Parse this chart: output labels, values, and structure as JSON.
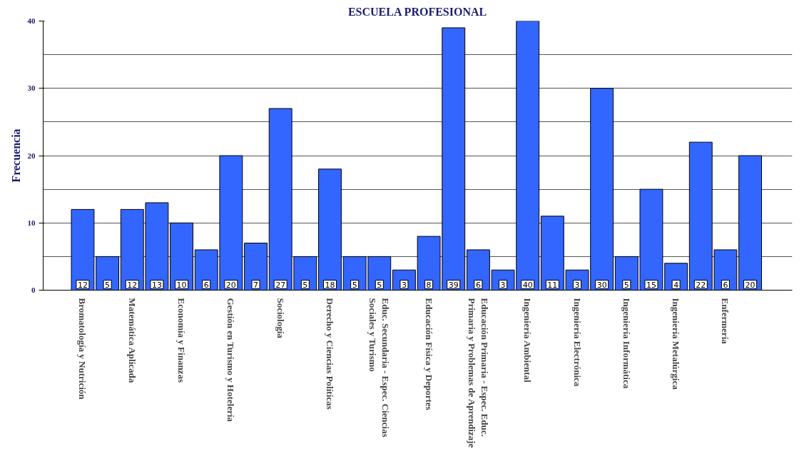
{
  "chart_data": {
    "type": "bar",
    "title": "ESCUELA PROFESIONAL",
    "ylabel": "Frecuencia",
    "categories": [
      "Bromatología y Nutrición",
      null,
      "Matemática Aplicada",
      null,
      "Economía y Finanzas",
      null,
      "Gestión en Turismo y Hotelería",
      null,
      "Sociología",
      null,
      "Derecho y Ciencias Políticas",
      null,
      "Educ. Secundaria - Espec. Ciencias\nSociales y Turismo",
      null,
      "Educación Física y Deportes",
      null,
      "Educación Primaria - Espec. Educ.\nPrimaria y Problemas de Aprendizaje",
      null,
      "Ingeniería Ambiental",
      null,
      "Ingeniería Electrónica",
      null,
      "Ingeniería Informática",
      null,
      "Ingeniería Metalúrgica",
      null,
      "Enfermería",
      null
    ],
    "values": [
      12,
      5,
      12,
      13,
      10,
      6,
      20,
      7,
      27,
      5,
      18,
      5,
      5,
      3,
      8,
      39,
      6,
      3,
      40,
      11,
      3,
      30,
      5,
      15,
      4,
      22,
      6,
      20
    ],
    "color": "#3366ff",
    "ylim": [
      0,
      40
    ],
    "yticks": [
      0,
      10,
      20,
      30,
      40
    ],
    "grid": "y",
    "data_labels": true
  }
}
